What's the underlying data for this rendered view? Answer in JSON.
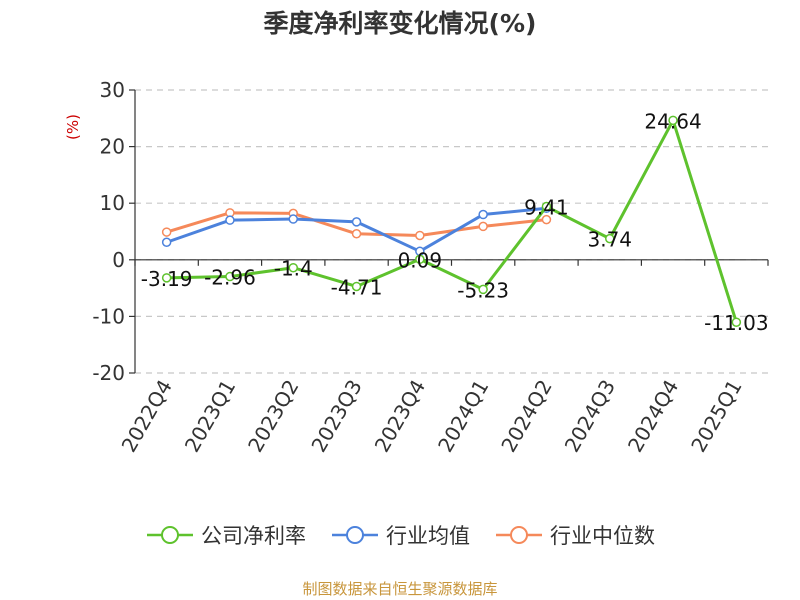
{
  "title": "季度净利率变化情况(%)",
  "source": "制图数据来自恒生聚源数据库",
  "chart_data": {
    "type": "line",
    "title": "季度净利率变化情况(%)",
    "ylabel": "(%)",
    "ylim": [
      -20,
      30
    ],
    "yticks": [
      -20,
      -10,
      0,
      10,
      20,
      30
    ],
    "grid": true,
    "legend_position": "bottom",
    "categories": [
      "2022Q4",
      "2023Q1",
      "2023Q2",
      "2023Q3",
      "2023Q4",
      "2024Q1",
      "2024Q2",
      "2024Q3",
      "2024Q4",
      "2025Q1"
    ],
    "series": [
      {
        "name": "公司净利率",
        "color": "#5ec22d",
        "values": [
          -3.19,
          -2.96,
          -1.4,
          -4.71,
          0.09,
          -5.23,
          9.41,
          3.74,
          24.64,
          -11.03
        ],
        "labels": [
          "-3.19",
          "-2.96",
          "-1.4",
          "-4.71",
          "0.09",
          "-5.23",
          "9.41",
          "3.74",
          "24.64",
          "-11.03"
        ]
      },
      {
        "name": "行业均值",
        "color": "#4c82dc",
        "values": [
          3.1,
          7.0,
          7.2,
          6.7,
          1.5,
          8.0,
          9.1,
          null,
          null,
          null
        ]
      },
      {
        "name": "行业中位数",
        "color": "#f5895a",
        "values": [
          4.9,
          8.3,
          8.2,
          4.6,
          4.3,
          5.9,
          7.1,
          null,
          null,
          null
        ]
      }
    ]
  }
}
